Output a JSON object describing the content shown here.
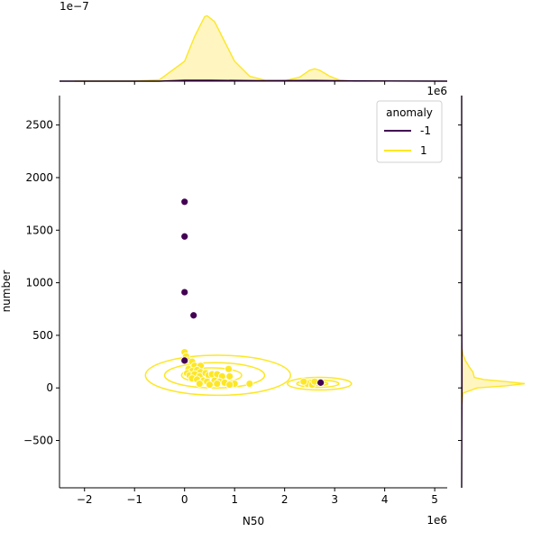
{
  "chart_data": {
    "type": "scatter",
    "xlabel": "N50",
    "ylabel": "number",
    "x_offset_label": "1e6",
    "top_offset_label": "1e6",
    "marginal_offset_label": "1e−7",
    "xlim": [
      -2500000,
      5250000
    ],
    "ylim": [
      -950,
      2780
    ],
    "x_ticks": [
      -2000000,
      -1000000,
      0,
      1000000,
      2000000,
      3000000,
      4000000,
      5000000
    ],
    "x_tick_labels": [
      "−2",
      "−1",
      "0",
      "1",
      "2",
      "3",
      "4",
      "5"
    ],
    "y_ticks": [
      -500,
      0,
      500,
      1000,
      1500,
      2000,
      2500
    ],
    "y_tick_labels": [
      "−500",
      "0",
      "500",
      "1000",
      "1500",
      "2000",
      "2500"
    ],
    "grid": false,
    "legend": {
      "title": "anomaly",
      "placement": "top-right",
      "entries": [
        {
          "label": "-1",
          "color": "#440154"
        },
        {
          "label": "1",
          "color": "#fde725"
        }
      ]
    },
    "series": [
      {
        "name": "-1",
        "color": "#440154",
        "points": [
          [
            0,
            1770
          ],
          [
            0,
            1440
          ],
          [
            0,
            910
          ],
          [
            180000,
            690
          ],
          [
            0,
            260
          ],
          [
            2720000,
            50
          ]
        ]
      },
      {
        "name": "1",
        "color": "#fde725",
        "points": [
          [
            0,
            340
          ],
          [
            30000,
            300
          ],
          [
            60000,
            260
          ],
          [
            150000,
            250
          ],
          [
            200000,
            210
          ],
          [
            320000,
            210
          ],
          [
            80000,
            180
          ],
          [
            150000,
            160
          ],
          [
            250000,
            170
          ],
          [
            320000,
            150
          ],
          [
            880000,
            180
          ],
          [
            50000,
            140
          ],
          [
            100000,
            120
          ],
          [
            200000,
            130
          ],
          [
            300000,
            110
          ],
          [
            420000,
            140
          ],
          [
            480000,
            120
          ],
          [
            550000,
            130
          ],
          [
            650000,
            130
          ],
          [
            750000,
            110
          ],
          [
            900000,
            110
          ],
          [
            150000,
            90
          ],
          [
            250000,
            80
          ],
          [
            380000,
            70
          ],
          [
            450000,
            60
          ],
          [
            600000,
            70
          ],
          [
            700000,
            60
          ],
          [
            800000,
            50
          ],
          [
            1000000,
            40
          ],
          [
            1300000,
            40
          ],
          [
            300000,
            40
          ],
          [
            500000,
            30
          ],
          [
            650000,
            40
          ],
          [
            900000,
            30
          ],
          [
            2450000,
            40
          ],
          [
            2550000,
            30
          ],
          [
            2600000,
            60
          ],
          [
            2380000,
            60
          ]
        ]
      }
    ],
    "contours": {
      "series": "1",
      "color": "#fde725",
      "clusters": [
        {
          "center": [
            450000,
            120
          ],
          "levels": [
            [
              1450000,
              190
            ],
            [
              1000000,
              120
            ],
            [
              600000,
              70
            ]
          ]
        },
        {
          "center": [
            2600000,
            40
          ],
          "levels": [
            [
              640000,
              60
            ],
            [
              420000,
              35
            ],
            [
              230000,
              18
            ]
          ]
        }
      ]
    },
    "marginal_x_density": {
      "series": [
        {
          "name": "1",
          "color": "#fde725",
          "fill": "#fff5c0",
          "x": [
            -2200000,
            -1000000,
            -500000,
            0,
            200000,
            400000,
            450000,
            600000,
            800000,
            1000000,
            1300000,
            1600000,
            2000000,
            2300000,
            2500000,
            2600000,
            2700000,
            2900000,
            3100000,
            3400000,
            4000000
          ],
          "density": [
            0,
            0,
            0.03,
            0.4,
            0.9,
            1.3,
            1.32,
            1.2,
            0.8,
            0.4,
            0.1,
            0.02,
            0.01,
            0.08,
            0.22,
            0.25,
            0.22,
            0.1,
            0.02,
            0,
            0
          ]
        },
        {
          "name": "-1",
          "color": "#440154",
          "x": [
            -2500000,
            -500000,
            0,
            500000,
            1500000,
            2600000,
            3500000,
            5250000
          ],
          "density": [
            0,
            0,
            0.02,
            0.02,
            0.01,
            0.015,
            0.005,
            0
          ]
        }
      ]
    },
    "marginal_y_density": {
      "series": [
        {
          "name": "1",
          "color": "#fde725",
          "fill": "#fff5c0",
          "y": [
            -200,
            -50,
            0,
            20,
            40,
            60,
            80,
            100,
            150,
            200,
            260,
            320,
            400
          ],
          "density": [
            0,
            0.02,
            0.25,
            0.7,
            1.0,
            0.7,
            0.35,
            0.2,
            0.18,
            0.12,
            0.06,
            0.02,
            0
          ]
        },
        {
          "name": "-1",
          "color": "#440154",
          "y": [
            -950,
            0,
            200,
            800,
            1500,
            2000,
            2780
          ],
          "density": [
            0,
            0.005,
            0.005,
            0.002,
            0.002,
            0.001,
            0
          ]
        }
      ]
    }
  }
}
